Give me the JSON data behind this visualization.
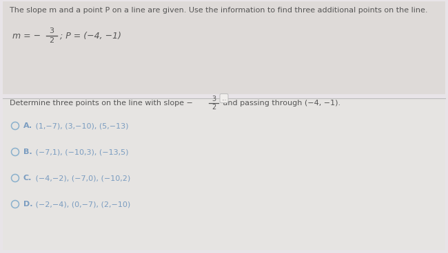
{
  "bg_color": "#e8e4e8",
  "top_section_bg": "#dedad8",
  "bottom_section_bg": "#e6e4e2",
  "divider_color": "#bbbbbb",
  "text_color": "#555555",
  "option_color": "#7a9cc0",
  "header_text": "The slope m and a point P on a line are given. Use the information to find three additional points on the line.",
  "formula_frac_num": "3",
  "formula_frac_den": "2",
  "formula_p": "; P = (−4, −1)",
  "divider_dots": "...",
  "question_pre": "Determine three points on the line with slope −",
  "question_frac_num": "3",
  "question_frac_den": "2",
  "question_post": " and passing through (−4, −1).",
  "options": [
    {
      "label": "A.",
      "text": " (1,−7), (3,−10), (5,−13)"
    },
    {
      "label": "B.",
      "text": " (−7,1), (−10,3), (−13,5)"
    },
    {
      "label": "C.",
      "text": " (−4,−2), (−7,0), (−10,2)"
    },
    {
      "label": "D.",
      "text": " (−2,−4), (0,−7), (2,−10)"
    }
  ],
  "circle_color": "#8ab0cc",
  "header_fontsize": 8.0,
  "formula_fontsize": 9.0,
  "question_fontsize": 8.0,
  "option_fontsize": 8.0
}
